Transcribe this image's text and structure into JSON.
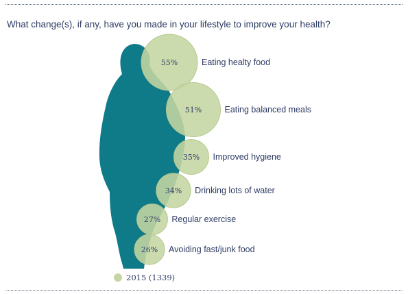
{
  "title": "What change(s), if any, have you made in your lifestyle to improve your health?",
  "legend": {
    "label": "2015 (1339)"
  },
  "colors": {
    "bubble": "#c5d6a2",
    "bubble_stroke": "#b5c98e",
    "silhouette": "#0f7a88",
    "text": "#2d3b63"
  },
  "chart_data": {
    "type": "bubble",
    "series": [
      {
        "name": "2015 (1339)",
        "color": "#c5d6a2"
      }
    ],
    "categories": [
      "Eating healty food",
      "Eating balanced meals",
      "Improved hygiene",
      "Drinking lots of water",
      "Regular exercise",
      "Avoiding fast/junk food"
    ],
    "values": [
      55,
      51,
      35,
      34,
      27,
      26
    ],
    "value_labels": [
      "55%",
      "51%",
      "35%",
      "34%",
      "27%",
      "26%"
    ],
    "unit": "%"
  }
}
